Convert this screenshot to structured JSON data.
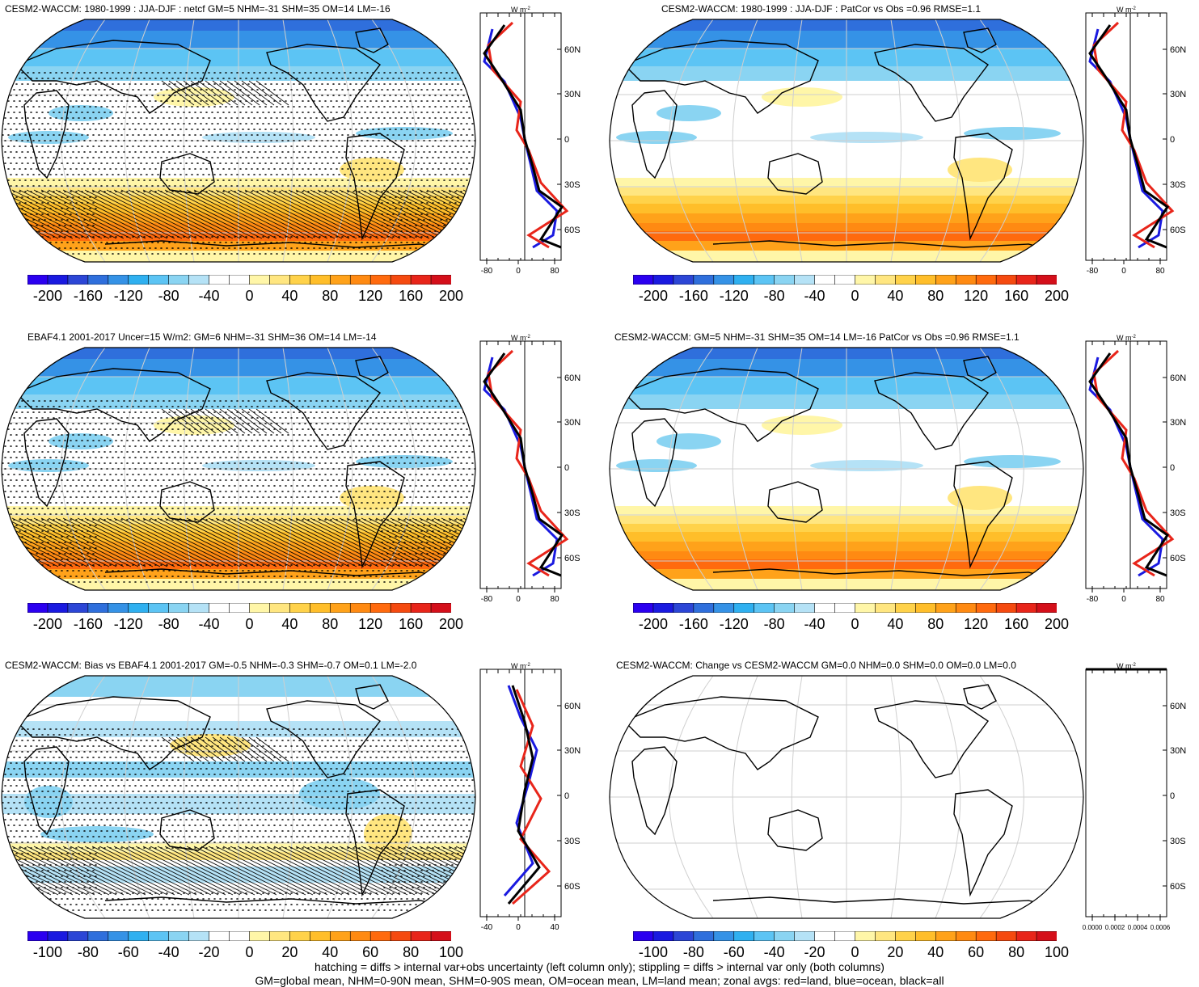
{
  "panels": [
    {
      "title": "CESM2-WACCM: 1980-1999 : JJA-DJF : netcf GM=5 NHM=-31 SHM=35 OM=14 LM=-16",
      "colorbar_labels": [
        "-200",
        "-160",
        "-120",
        "-80",
        "-40",
        "0",
        "40",
        "80",
        "120",
        "160",
        "200"
      ],
      "zonal_x_ticks": [
        "-80",
        "0",
        "80"
      ],
      "zonal_y_ticks": [
        "60N",
        "30N",
        "0",
        "30S",
        "60S"
      ],
      "zonal_unit": "W m-2"
    },
    {
      "title": "CESM2-WACCM: 1980-1999 : JJA-DJF : PatCor vs Obs =0.96 RMSE=1.1",
      "colorbar_labels": [
        "-200",
        "-160",
        "-120",
        "-80",
        "-40",
        "0",
        "40",
        "80",
        "120",
        "160",
        "200"
      ],
      "zonal_x_ticks": [
        "-80",
        "0",
        "80"
      ],
      "zonal_y_ticks": [
        "60N",
        "30N",
        "0",
        "30S",
        "60S"
      ],
      "zonal_unit": "W m-2"
    },
    {
      "title": "EBAF4.1 2001-2017 Uncer=15 W/m2: GM=6 NHM=-31 SHM=36 OM=14 LM=-14",
      "colorbar_labels": [
        "-200",
        "-160",
        "-120",
        "-80",
        "-40",
        "0",
        "40",
        "80",
        "120",
        "160",
        "200"
      ],
      "zonal_x_ticks": [
        "-80",
        "0",
        "80"
      ],
      "zonal_y_ticks": [
        "60N",
        "30N",
        "0",
        "30S",
        "60S"
      ],
      "zonal_unit": "W m-2"
    },
    {
      "title": "CESM2-WACCM: GM=5 NHM=-31 SHM=35 OM=14 LM=-16 PatCor vs Obs =0.96 RMSE=1.1",
      "colorbar_labels": [
        "-200",
        "-160",
        "-120",
        "-80",
        "-40",
        "0",
        "40",
        "80",
        "120",
        "160",
        "200"
      ],
      "zonal_x_ticks": [
        "-80",
        "0",
        "80"
      ],
      "zonal_y_ticks": [
        "60N",
        "30N",
        "0",
        "30S",
        "60S"
      ],
      "zonal_unit": "W m-2"
    },
    {
      "title": "CESM2-WACCM: Bias vs EBAF4.1 2001-2017 GM=-0.5 NHM=-0.3 SHM=-0.7 OM=0.1 LM=-2.0",
      "colorbar_labels": [
        "-100",
        "-80",
        "-60",
        "-40",
        "-20",
        "0",
        "20",
        "40",
        "60",
        "80",
        "100"
      ],
      "zonal_x_ticks": [
        "-40",
        "0",
        "40"
      ],
      "zonal_y_ticks": [
        "60N",
        "30N",
        "0",
        "30S",
        "60S"
      ],
      "zonal_unit": "W m-2"
    },
    {
      "title": "CESM2-WACCM: Change vs CESM2-WACCM GM=0.0 NHM=0.0 SHM=0.0 OM=0.0 LM=0.0",
      "colorbar_labels": [
        "-100",
        "-80",
        "-60",
        "-40",
        "-20",
        "0",
        "20",
        "40",
        "60",
        "80",
        "100"
      ],
      "zonal_x_ticks": [
        "0.0000",
        "0.0002",
        "0.0004",
        "0.0006"
      ],
      "zonal_y_ticks": [
        "60N",
        "30N",
        "0",
        "30S",
        "60S"
      ],
      "zonal_unit": "W m-2"
    }
  ],
  "colors": {
    "palette": [
      "#2b00f0",
      "#1a1ae0",
      "#2c46d6",
      "#2f6fdc",
      "#3592e6",
      "#2fb0f0",
      "#5cc4f4",
      "#8ad4f2",
      "#b5e2f6",
      "#ffffff",
      "#ffffff",
      "#fff6a8",
      "#ffe680",
      "#ffd24a",
      "#ffbe2a",
      "#ffa21a",
      "#ff8a12",
      "#ff6a0e",
      "#f54a10",
      "#e8251a",
      "#d40f1a"
    ],
    "land_line": "red",
    "ocean_line": "blue",
    "all_line": "black"
  },
  "footer": {
    "line1": "hatching = diffs > internal var+obs uncertainty (left column only); stippling = diffs > internal var only (both columns)",
    "line2": "GM=global mean, NHM=0-90N mean, SHM=0-90S mean, OM=ocean mean, LM=land mean; zonal avgs: red=land, blue=ocean, black=all"
  }
}
